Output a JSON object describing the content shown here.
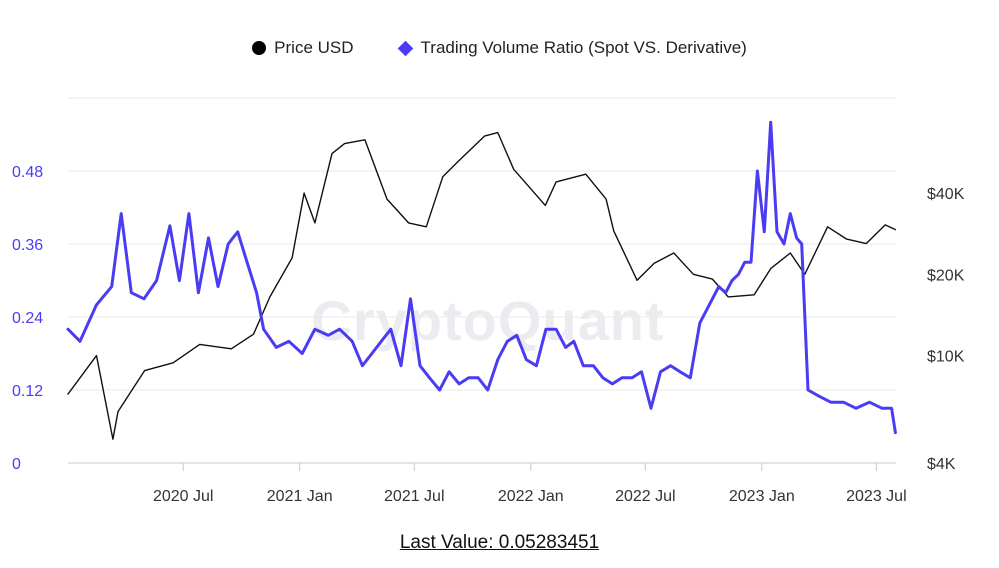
{
  "legend": {
    "price_label": "Price USD",
    "ratio_label": "Trading Volume Ratio (Spot VS. Derivative)"
  },
  "watermark": "CryptoQuant",
  "footer": {
    "last_value_text": "Last Value: 0.05283451"
  },
  "colors": {
    "price": "#111111",
    "ratio": "#4a3cf2",
    "grid": "#e9e9ee"
  },
  "chart_data": {
    "type": "line",
    "title": "",
    "x_ticks": [
      "2020 Jul",
      "2021 Jan",
      "2021 Jul",
      "2022 Jan",
      "2022 Jul",
      "2023 Jan",
      "2023 Jul"
    ],
    "x_range": [
      "2020-01-01",
      "2023-08-01"
    ],
    "y_left": {
      "ticks": [
        "0",
        "0.12",
        "0.24",
        "0.36",
        "0.48"
      ],
      "range": [
        0,
        0.6
      ]
    },
    "y_right": {
      "scale": "log",
      "ticks": [
        "$4K",
        "$10K",
        "$20K",
        "$40K"
      ],
      "range": [
        4000,
        90000
      ]
    },
    "grid": true,
    "legend_position": "top",
    "series": [
      {
        "name": "Price USD",
        "axis": "right",
        "x": [
          "2020-01-01",
          "2020-02-15",
          "2020-03-12",
          "2020-03-20",
          "2020-05-01",
          "2020-06-15",
          "2020-07-27",
          "2020-09-15",
          "2020-10-20",
          "2020-11-15",
          "2020-12-20",
          "2021-01-08",
          "2021-01-25",
          "2021-02-21",
          "2021-03-13",
          "2021-04-14",
          "2021-05-19",
          "2021-06-22",
          "2021-07-20",
          "2021-08-15",
          "2021-09-07",
          "2021-10-20",
          "2021-11-10",
          "2021-12-05",
          "2022-01-24",
          "2022-02-10",
          "2022-03-29",
          "2022-04-30",
          "2022-05-12",
          "2022-06-18",
          "2022-07-15",
          "2022-08-15",
          "2022-09-15",
          "2022-10-15",
          "2022-11-09",
          "2022-12-20",
          "2023-01-15",
          "2023-02-15",
          "2023-03-10",
          "2023-04-15",
          "2023-05-15",
          "2023-06-15",
          "2023-07-15",
          "2023-07-31"
        ],
        "values": [
          7200,
          10000,
          4900,
          6200,
          8800,
          9400,
          11000,
          10600,
          12000,
          16500,
          23000,
          40000,
          31000,
          56000,
          61000,
          63000,
          38000,
          31000,
          30000,
          46000,
          52000,
          65000,
          67000,
          49000,
          36000,
          44000,
          47000,
          38000,
          29000,
          19000,
          22000,
          24000,
          20000,
          19200,
          16500,
          16800,
          21000,
          24000,
          20000,
          30000,
          27000,
          26000,
          30500,
          29300
        ]
      },
      {
        "name": "Trading Volume Ratio (Spot VS. Derivative)",
        "axis": "left",
        "x": [
          "2020-01-01",
          "2020-01-20",
          "2020-02-15",
          "2020-03-10",
          "2020-03-25",
          "2020-04-10",
          "2020-04-30",
          "2020-05-20",
          "2020-06-10",
          "2020-06-25",
          "2020-07-10",
          "2020-07-25",
          "2020-08-10",
          "2020-08-25",
          "2020-09-10",
          "2020-09-25",
          "2020-10-10",
          "2020-10-25",
          "2020-11-05",
          "2020-11-25",
          "2020-12-15",
          "2021-01-05",
          "2021-01-25",
          "2021-02-15",
          "2021-03-05",
          "2021-03-25",
          "2021-04-10",
          "2021-04-25",
          "2021-05-10",
          "2021-05-25",
          "2021-06-10",
          "2021-06-25",
          "2021-07-10",
          "2021-07-25",
          "2021-08-10",
          "2021-08-25",
          "2021-09-10",
          "2021-09-25",
          "2021-10-10",
          "2021-10-25",
          "2021-11-10",
          "2021-11-25",
          "2021-12-10",
          "2021-12-25",
          "2022-01-10",
          "2022-01-25",
          "2022-02-10",
          "2022-02-25",
          "2022-03-10",
          "2022-03-25",
          "2022-04-10",
          "2022-04-25",
          "2022-05-10",
          "2022-05-25",
          "2022-06-10",
          "2022-06-25",
          "2022-07-10",
          "2022-07-25",
          "2022-08-10",
          "2022-08-25",
          "2022-09-10",
          "2022-09-25",
          "2022-10-10",
          "2022-10-25",
          "2022-11-05",
          "2022-11-15",
          "2022-11-25",
          "2022-12-05",
          "2022-12-15",
          "2022-12-25",
          "2023-01-05",
          "2023-01-15",
          "2023-01-25",
          "2023-02-05",
          "2023-02-15",
          "2023-02-25",
          "2023-03-05",
          "2023-03-15",
          "2023-04-01",
          "2023-04-20",
          "2023-05-10",
          "2023-05-30",
          "2023-06-20",
          "2023-07-10",
          "2023-07-25",
          "2023-07-31"
        ],
        "values": [
          0.22,
          0.2,
          0.26,
          0.29,
          0.41,
          0.28,
          0.27,
          0.3,
          0.39,
          0.3,
          0.41,
          0.28,
          0.37,
          0.29,
          0.36,
          0.38,
          0.33,
          0.28,
          0.22,
          0.19,
          0.2,
          0.18,
          0.22,
          0.21,
          0.22,
          0.2,
          0.16,
          0.18,
          0.2,
          0.22,
          0.16,
          0.27,
          0.16,
          0.14,
          0.12,
          0.15,
          0.13,
          0.14,
          0.14,
          0.12,
          0.17,
          0.2,
          0.21,
          0.17,
          0.16,
          0.22,
          0.22,
          0.19,
          0.2,
          0.16,
          0.16,
          0.14,
          0.13,
          0.14,
          0.14,
          0.15,
          0.09,
          0.15,
          0.16,
          0.15,
          0.14,
          0.23,
          0.26,
          0.29,
          0.28,
          0.3,
          0.31,
          0.33,
          0.33,
          0.48,
          0.38,
          0.56,
          0.38,
          0.36,
          0.41,
          0.37,
          0.36,
          0.12,
          0.11,
          0.1,
          0.1,
          0.09,
          0.1,
          0.09,
          0.09,
          0.05
        ]
      }
    ],
    "last_value": 0.05283451
  }
}
